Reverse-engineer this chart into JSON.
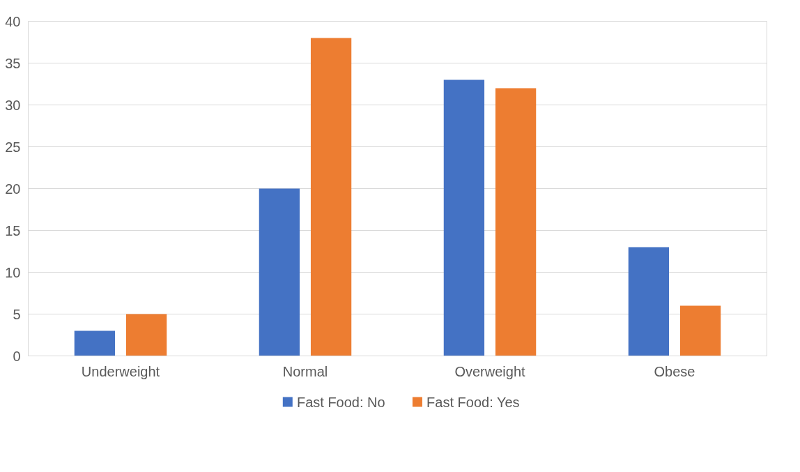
{
  "chart_data": {
    "type": "bar",
    "categories": [
      "Underweight",
      "Normal",
      "Overweight",
      "Obese"
    ],
    "series": [
      {
        "name": "Fast Food: No",
        "color": "#4472c4",
        "values": [
          3,
          20,
          33,
          13
        ]
      },
      {
        "name": "Fast Food: Yes",
        "color": "#ed7d31",
        "values": [
          5,
          38,
          32,
          6
        ]
      }
    ],
    "ylim": [
      0,
      40
    ],
    "yticks": [
      0,
      5,
      10,
      15,
      20,
      25,
      30,
      35,
      40
    ],
    "grid": "y",
    "legend": "bottom"
  }
}
